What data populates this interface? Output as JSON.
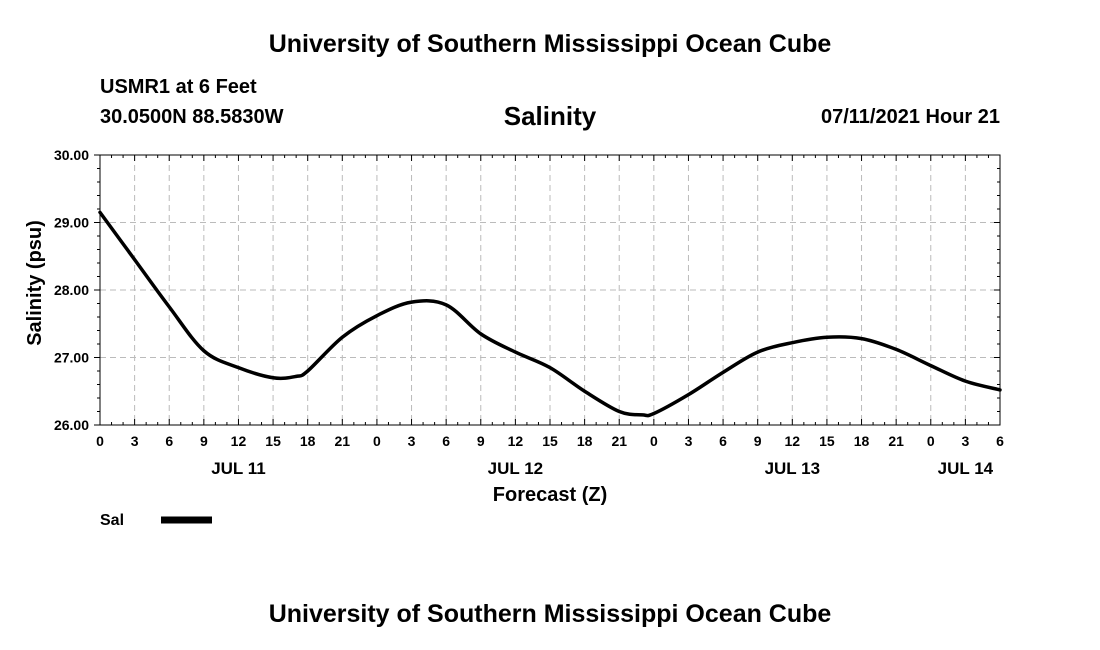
{
  "header": {
    "top_title": "University of Southern Mississippi Ocean Cube",
    "station_name": "USMR1 at 6 Feet",
    "station_coords": "30.0500N  88.5830W",
    "chart_title": "Salinity",
    "forecast_time": "07/11/2021 Hour 21",
    "bottom_title": "University of Southern Mississippi Ocean Cube"
  },
  "colors": {
    "line": "#000000",
    "grid": "#bbbbbb"
  },
  "chart_data": {
    "type": "line",
    "title": "Salinity",
    "xlabel": "Forecast (Z)",
    "ylabel": "Salinity (psu)",
    "ylim": [
      26.0,
      30.0
    ],
    "xlim": [
      0,
      78
    ],
    "grid": true,
    "legend_position": "bottom-left",
    "y_ticks": [
      "26.00",
      "27.00",
      "28.00",
      "29.00",
      "30.00"
    ],
    "x_ticks": [
      "0",
      "3",
      "6",
      "9",
      "12",
      "15",
      "18",
      "21",
      "0",
      "3",
      "6",
      "9",
      "12",
      "15",
      "18",
      "21",
      "0",
      "3",
      "6",
      "9",
      "12",
      "15",
      "18",
      "21",
      "0",
      "3",
      "6"
    ],
    "date_labels": [
      {
        "label": "JUL 11",
        "hour": 12
      },
      {
        "label": "JUL 12",
        "hour": 36
      },
      {
        "label": "JUL 13",
        "hour": 60
      },
      {
        "label": "JUL 14",
        "hour": 75
      }
    ],
    "series": [
      {
        "name": "Sal",
        "x": [
          0,
          3,
          6,
          9,
          12,
          15,
          17,
          18,
          21,
          24,
          27,
          30,
          33,
          36,
          39,
          42,
          45,
          47,
          48,
          51,
          54,
          57,
          60,
          63,
          66,
          69,
          72,
          75,
          78
        ],
        "values": [
          29.15,
          28.45,
          27.75,
          27.1,
          26.85,
          26.7,
          26.72,
          26.8,
          27.3,
          27.62,
          27.82,
          27.78,
          27.35,
          27.08,
          26.85,
          26.5,
          26.2,
          26.15,
          26.17,
          26.45,
          26.78,
          27.08,
          27.22,
          27.3,
          27.28,
          27.12,
          26.88,
          26.65,
          26.52
        ]
      }
    ]
  }
}
